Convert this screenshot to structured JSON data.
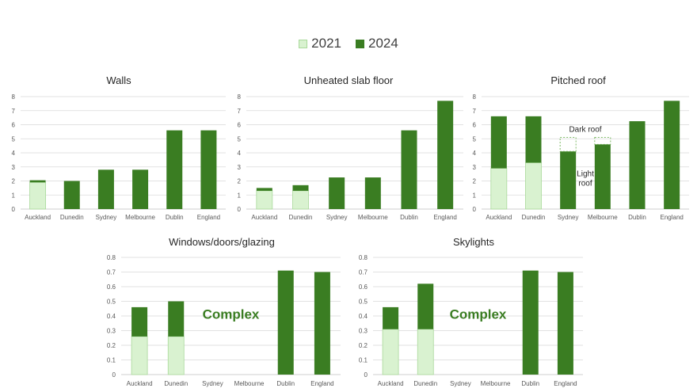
{
  "legend": {
    "a": "2021",
    "b": "2024"
  },
  "colors": {
    "a": "#d9f2d0",
    "a_border": "#a9d99a",
    "b": "#3a7d22",
    "grid": "#d9d9d9"
  },
  "chart_data": [
    {
      "type": "bar",
      "stacked": true,
      "title": "Walls",
      "categories": [
        "Auckland",
        "Dunedin",
        "Sydney",
        "Melbourne",
        "Dublin",
        "England"
      ],
      "series": [
        {
          "name": "2021",
          "values": [
            1.9,
            0,
            0,
            0,
            0,
            0
          ]
        },
        {
          "name": "2024",
          "values": [
            0.15,
            2.0,
            2.8,
            2.8,
            5.6,
            5.6
          ]
        }
      ],
      "ylim": [
        0,
        8
      ],
      "yticks": [
        0,
        1,
        2,
        3,
        4,
        5,
        6,
        7,
        8
      ]
    },
    {
      "type": "bar",
      "stacked": true,
      "title": "Unheated slab floor",
      "categories": [
        "Auckland",
        "Dunedin",
        "Sydney",
        "Melbourne",
        "Dublin",
        "England"
      ],
      "series": [
        {
          "name": "2021",
          "values": [
            1.3,
            1.3,
            0,
            0,
            0,
            0
          ]
        },
        {
          "name": "2024",
          "values": [
            0.2,
            0.4,
            2.25,
            2.25,
            5.6,
            7.7
          ]
        }
      ],
      "ylim": [
        0,
        8
      ],
      "yticks": [
        0,
        1,
        2,
        3,
        4,
        5,
        6,
        7,
        8
      ]
    },
    {
      "type": "bar",
      "stacked": true,
      "title": "Pitched roof",
      "categories": [
        "Auckland",
        "Dunedin",
        "Sydney",
        "Melbourne",
        "Dublin",
        "England"
      ],
      "series": [
        {
          "name": "2021",
          "values": [
            2.9,
            3.3,
            0,
            0,
            0,
            0
          ]
        },
        {
          "name": "2024",
          "values": [
            3.7,
            3.3,
            4.1,
            4.6,
            6.25,
            7.7
          ]
        }
      ],
      "dashed_extension": [
        null,
        null,
        1.0,
        0.5,
        null,
        null
      ],
      "annotations": {
        "dark": "Dark roof",
        "light": "Light\nroof"
      },
      "ylim": [
        0,
        8
      ],
      "yticks": [
        0,
        1,
        2,
        3,
        4,
        5,
        6,
        7,
        8
      ]
    },
    {
      "type": "bar",
      "stacked": true,
      "title": "Windows/doors/glazing",
      "categories": [
        "Auckland",
        "Dunedin",
        "Sydney",
        "Melbourne",
        "Dublin",
        "England"
      ],
      "series": [
        {
          "name": "2021",
          "values": [
            0.26,
            0.26,
            0,
            0,
            0,
            0
          ]
        },
        {
          "name": "2024",
          "values": [
            0.2,
            0.24,
            0,
            0,
            0.71,
            0.7
          ]
        }
      ],
      "overlay_text": "Complex",
      "ylim": [
        0,
        0.8
      ],
      "yticks": [
        0,
        0.1,
        0.2,
        0.3,
        0.4,
        0.5,
        0.6,
        0.7,
        0.8
      ]
    },
    {
      "type": "bar",
      "stacked": true,
      "title": "Skylights",
      "categories": [
        "Auckland",
        "Dunedin",
        "Sydney",
        "Melbourne",
        "Dublin",
        "England"
      ],
      "series": [
        {
          "name": "2021",
          "values": [
            0.31,
            0.31,
            0,
            0,
            0,
            0
          ]
        },
        {
          "name": "2024",
          "values": [
            0.15,
            0.31,
            0,
            0,
            0.71,
            0.7
          ]
        }
      ],
      "overlay_text": "Complex",
      "ylim": [
        0,
        0.8
      ],
      "yticks": [
        0,
        0.1,
        0.2,
        0.3,
        0.4,
        0.5,
        0.6,
        0.7,
        0.8
      ]
    }
  ]
}
